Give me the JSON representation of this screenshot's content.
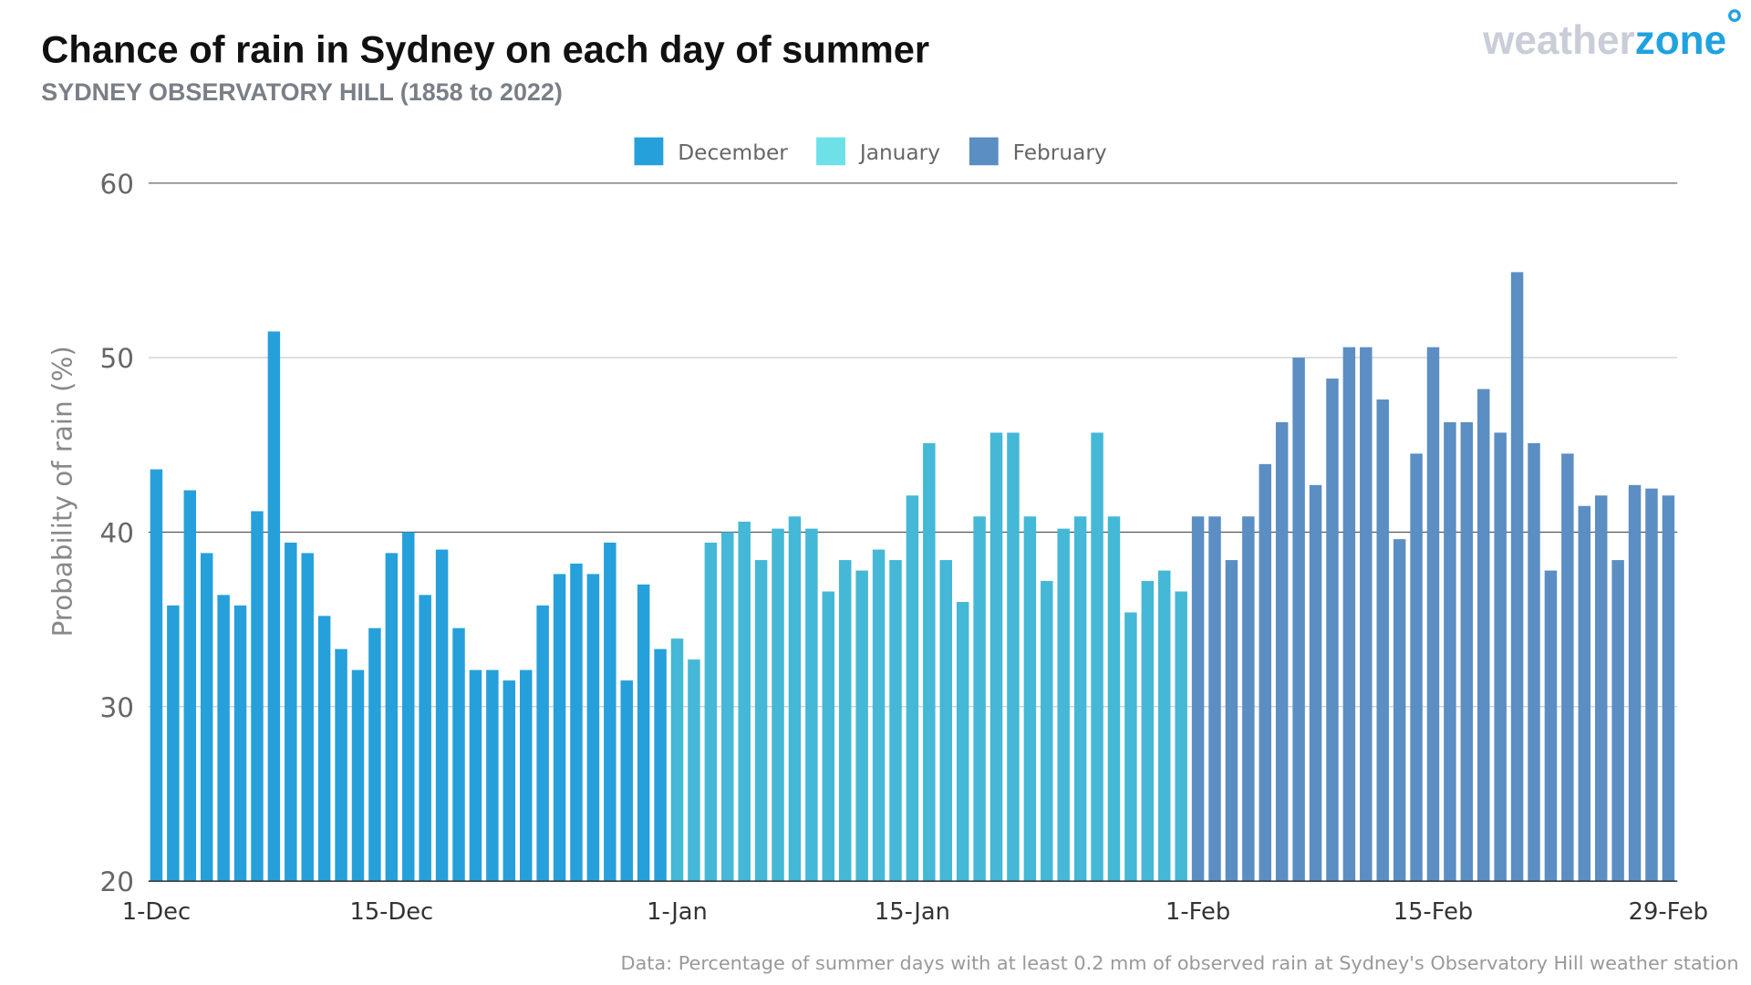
{
  "header": {
    "title": "Chance of rain in Sydney on each day of summer",
    "subtitle": "SYDNEY OBSERVATORY HILL (1858 to 2022)"
  },
  "logo": {
    "part1": "weather",
    "part2": "zone",
    "mark": "°"
  },
  "footer": {
    "note": "Data: Percentage of summer days with at least 0.2 mm of observed rain at Sydney's Observatory Hill weather station"
  },
  "chart_data": {
    "type": "bar",
    "title": "Chance of rain in Sydney on each day of summer",
    "subtitle": "SYDNEY OBSERVATORY HILL (1858 to 2022)",
    "ylabel": "Probability of rain (%)",
    "xlabel": "",
    "ylim": [
      20,
      60
    ],
    "yticks": [
      20,
      30,
      40,
      50,
      60
    ],
    "xtick_labels": [
      {
        "label": "1-Dec",
        "day_index": 0
      },
      {
        "label": "15-Dec",
        "day_index": 14
      },
      {
        "label": "1-Jan",
        "day_index": 31
      },
      {
        "label": "15-Jan",
        "day_index": 45
      },
      {
        "label": "1-Feb",
        "day_index": 62
      },
      {
        "label": "15-Feb",
        "day_index": 76
      },
      {
        "label": "29-Feb",
        "day_index": 90
      }
    ],
    "grid": true,
    "legend_position": "top-center",
    "series": [
      {
        "name": "December",
        "legend_color": "#26a0da",
        "color": "#26a0da",
        "values": [
          43.6,
          35.8,
          42.4,
          38.8,
          36.4,
          35.8,
          41.2,
          51.5,
          39.4,
          38.8,
          35.2,
          33.3,
          32.1,
          34.5,
          38.8,
          40.0,
          36.4,
          39.0,
          34.5,
          32.1,
          32.1,
          31.5,
          32.1,
          35.8,
          37.6,
          38.2,
          37.6,
          39.4,
          31.5,
          37.0,
          33.3
        ]
      },
      {
        "name": "January",
        "legend_color": "#6ee0e8",
        "color": "#44b8d6",
        "values": [
          33.9,
          32.7,
          39.4,
          40.0,
          40.6,
          38.4,
          40.2,
          40.9,
          40.2,
          36.6,
          38.4,
          37.8,
          39.0,
          38.4,
          42.1,
          45.1,
          38.4,
          36.0,
          40.9,
          45.7,
          45.7,
          40.9,
          37.2,
          40.2,
          40.9,
          45.7,
          40.9,
          35.4,
          37.2,
          37.8,
          36.6
        ]
      },
      {
        "name": "February",
        "legend_color": "#5b8ec3",
        "color": "#5b8ec3",
        "values": [
          40.9,
          40.9,
          38.4,
          40.9,
          43.9,
          46.3,
          50.0,
          42.7,
          48.8,
          50.6,
          50.6,
          47.6,
          39.6,
          44.5,
          50.6,
          46.3,
          46.3,
          48.2,
          45.7,
          54.9,
          45.1,
          37.8,
          44.5,
          41.5,
          42.1,
          38.4,
          42.7,
          42.5,
          42.1
        ]
      }
    ]
  }
}
